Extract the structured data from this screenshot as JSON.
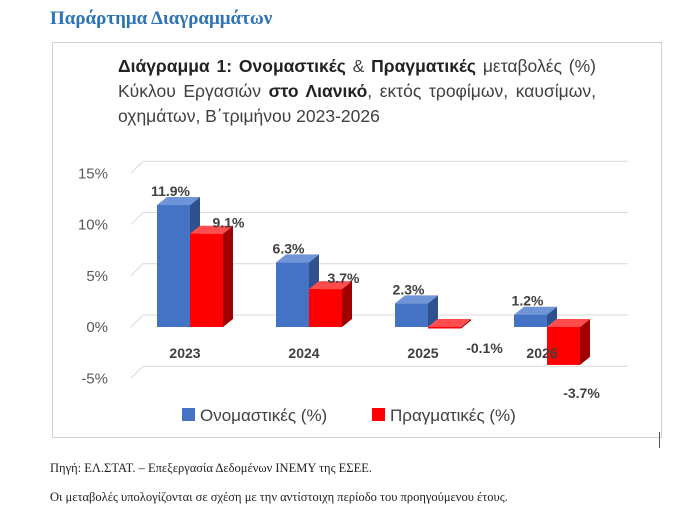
{
  "page": {
    "section_title": "Παράρτημα Διαγραμμάτων",
    "source": "Πηγή: ΕΛ.ΣΤΑΤ. – Επεξεργασία Δεδομένων ΙΝΕΜΥ της ΕΣΕΕ.",
    "note": "Οι μεταβολές υπολογίζονται σε σχέση με την αντίστοιχη περίοδο του προηγούμενου έτους."
  },
  "chart_title": {
    "t1": "Διάγραμμα 1: ",
    "t2": "Ονομαστικές",
    "t3": " & ",
    "t4": "Πραγματικές",
    "t5": " μεταβολές (%) Κύκλου Εργασιών ",
    "t6": "στο Λιανικό",
    "t7": ", εκτός τροφίμων, καυσίμων, οχημάτων, Β΄τριμήνου 2023-2026"
  },
  "chart_data": {
    "type": "bar",
    "title": "Διάγραμμα 1: Ονομαστικές & Πραγματικές μεταβολές (%) Κύκλου Εργασιών στο Λιανικό, εκτός τροφίμων, καυσίμων, οχημάτων, Β΄τριμήνου 2023-2026",
    "categories": [
      "2023",
      "2024",
      "2025",
      "2026"
    ],
    "series": [
      {
        "name": "Ονομαστικές (%)",
        "values": [
          11.9,
          6.3,
          2.3,
          1.2
        ],
        "labels": [
          "11.9%",
          "6.3%",
          "2.3%",
          "1.2%"
        ],
        "color": "#4472c4",
        "top_color": "#6f94d8",
        "side_color": "#2f528f"
      },
      {
        "name": "Πραγματικές (%)",
        "values": [
          9.1,
          3.7,
          -0.1,
          -3.7
        ],
        "labels": [
          "9.1%",
          "3.7%",
          "-0.1%",
          "-3.7%"
        ],
        "color": "#ff0000",
        "top_color": "#ff4d4d",
        "side_color": "#a00000"
      }
    ],
    "yticks": [
      15,
      10,
      5,
      0,
      -5
    ],
    "ytick_labels": [
      "15%",
      "10%",
      "5%",
      "0%",
      "-5%"
    ],
    "ylim": [
      -5,
      15
    ],
    "grid": true,
    "legend": "bottom",
    "style": "3d-clustered"
  }
}
